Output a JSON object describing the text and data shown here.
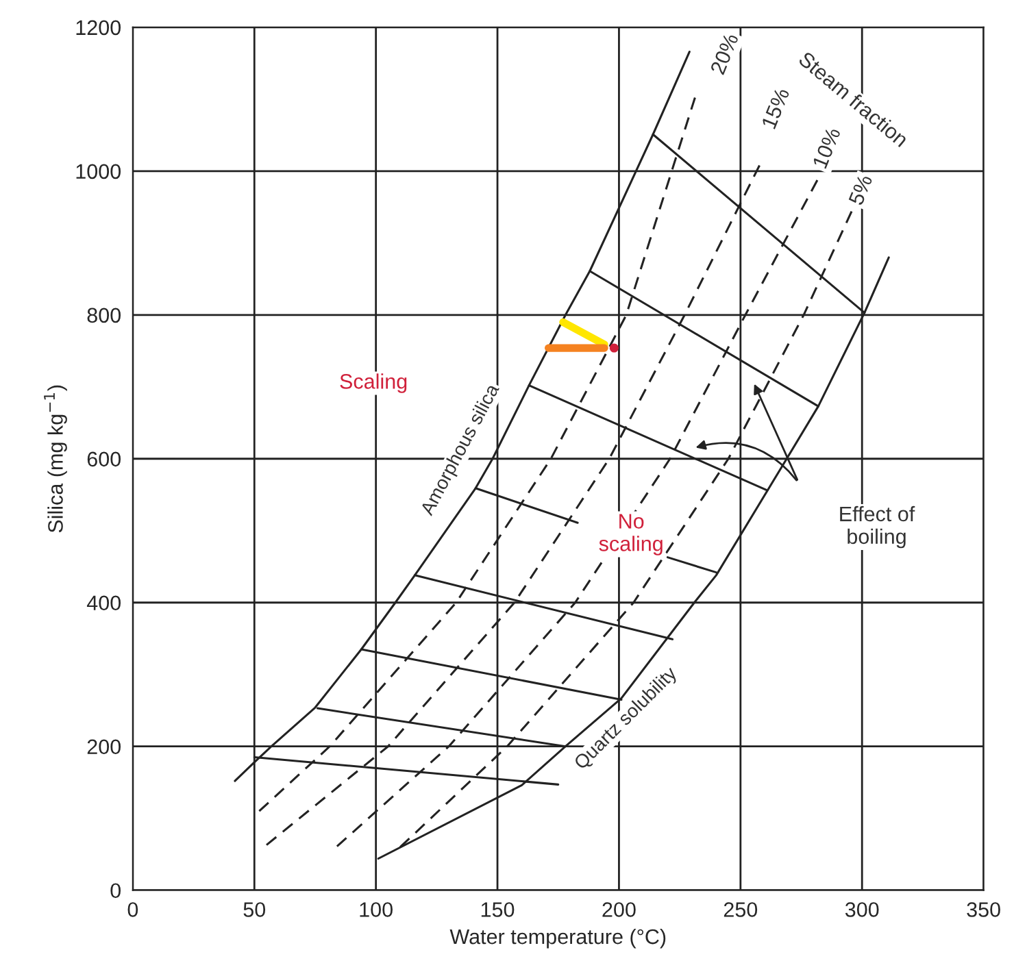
{
  "chart_data": {
    "type": "line",
    "xlabel": "Water temperature (°C)",
    "ylabel": "Silica (mg kg$^{−1}$)",
    "xlim": [
      0,
      350
    ],
    "ylim": [
      0,
      1200
    ],
    "xticks": [
      0,
      50,
      100,
      150,
      200,
      250,
      300,
      350
    ],
    "yticks": [
      0,
      200,
      400,
      600,
      800,
      1000,
      1200
    ],
    "grid": true,
    "legend": false,
    "series": [
      {
        "color": "#222222",
        "line_style": "solid",
        "x": [
          42,
          50,
          57,
          75,
          94,
          108,
          116,
          141,
          148,
          163,
          178,
          188,
          214,
          229
        ],
        "values": [
          152,
          178,
          200,
          254,
          335,
          400,
          438,
          559,
          600,
          702,
          800,
          861,
          1051,
          1166
        ]
      },
      {
        "color": "#222222",
        "line_style": "dashed",
        "x": [
          52,
          81,
          133,
          172,
          203,
          232
        ],
        "values": [
          110,
          200,
          400,
          600,
          800,
          1110
        ]
      },
      {
        "color": "#222222",
        "line_style": "dashed",
        "x": [
          55,
          105,
          157,
          196,
          227,
          259
        ],
        "values": [
          63,
          200,
          400,
          600,
          800,
          1016
        ]
      },
      {
        "color": "#222222",
        "line_style": "dashed",
        "x": [
          84,
          130,
          182,
          221,
          252,
          282
        ],
        "values": [
          61,
          200,
          400,
          600,
          800,
          990
        ]
      },
      {
        "color": "#222222",
        "line_style": "dashed",
        "x": [
          110,
          154,
          206,
          245,
          276,
          296
        ],
        "values": [
          60,
          200,
          400,
          600,
          800,
          946
        ]
      },
      {
        "color": "#222222",
        "line_style": "solid",
        "x": [
          101,
          160,
          178,
          201,
          231,
          240,
          269,
          282,
          301,
          311
        ],
        "values": [
          44,
          146,
          200,
          267,
          400,
          438,
          600,
          673,
          803,
          880
        ]
      },
      {
        "color": "#222222",
        "line_style": "solid",
        "x": [
          50,
          175
        ],
        "values": [
          185,
          147
        ]
      },
      {
        "color": "#222222",
        "line_style": "solid",
        "x": [
          76,
          178
        ],
        "values": [
          253,
          200
        ]
      },
      {
        "color": "#222222",
        "line_style": "solid",
        "x": [
          94,
          201
        ],
        "values": [
          335,
          265
        ]
      },
      {
        "color": "#222222",
        "line_style": "solid",
        "x": [
          116,
          222
        ],
        "values": [
          438,
          349
        ]
      },
      {
        "color": "#222222",
        "line_style": "solid",
        "x": [
          141,
          183
        ],
        "values": [
          559,
          511
        ]
      },
      {
        "color": "#222222",
        "line_style": "solid",
        "x": [
          220,
          240
        ],
        "values": [
          463,
          442
        ]
      },
      {
        "color": "#222222",
        "line_style": "solid",
        "x": [
          163,
          261
        ],
        "values": [
          702,
          556
        ]
      },
      {
        "color": "#222222",
        "line_style": "solid",
        "x": [
          188,
          282
        ],
        "values": [
          861,
          673
        ]
      },
      {
        "color": "#222222",
        "line_style": "solid",
        "x": [
          214,
          301
        ],
        "values": [
          1051,
          803
        ]
      },
      {
        "color": "#ffe600",
        "line_style": "solid",
        "x": [
          177,
          194
        ],
        "values": [
          790,
          759
        ]
      },
      {
        "color": "#f58220",
        "line_style": "solid",
        "x": [
          171,
          194
        ],
        "values": [
          754,
          754
        ]
      },
      {
        "type": "scatter",
        "color": "#d0203a",
        "x": [
          198
        ],
        "values": [
          754
        ]
      }
    ],
    "annotations": [
      "Scaling",
      "No\nscaling",
      "Amorphous silica",
      "Quartz solubility",
      "Steam fraction",
      {
        "text": "20%",
        "x": 244,
        "y": 1162
      },
      {
        "text": "15%",
        "x": 265,
        "y": 1086
      },
      {
        "text": "10%",
        "x": 286,
        "y": 1031
      },
      {
        "text": "5%",
        "x": 300,
        "y": 973
      },
      "Effect of\nboiling"
    ]
  }
}
